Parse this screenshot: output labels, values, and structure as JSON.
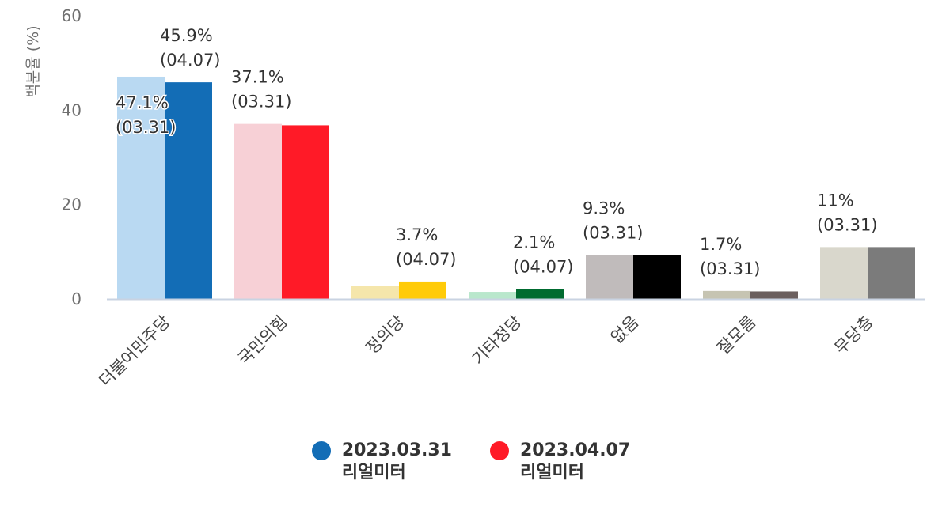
{
  "chart_data": {
    "type": "bar",
    "ylabel": "백분율 (%)",
    "ylim": [
      0,
      60
    ],
    "yticks": [
      "0",
      "20",
      "40",
      "60"
    ],
    "categories": [
      "더불어민주당",
      "국민의힘",
      "정의당",
      "기타정당",
      "없음",
      "잘모름",
      "무당층"
    ],
    "series": [
      {
        "name": "2023.03.31",
        "sub": "리얼미터",
        "color": "#1f77b4",
        "values": [
          47.1,
          37.1,
          2.8,
          1.5,
          9.3,
          1.7,
          11
        ],
        "bar_colors": [
          "#b9d9f2",
          "#f7d0d6",
          "#f5e6ab",
          "#b9e7cc",
          "#c0bbbb",
          "#c6c4b2",
          "#d9d7cc"
        ],
        "labels": [
          "47.1%\n(03.31)",
          "37.1%\n(03.31)",
          "",
          "",
          "9.3%\n(03.31)",
          "1.7%\n(03.31)",
          "11%\n(03.31)"
        ]
      },
      {
        "name": "2023.04.07",
        "sub": "리얼미터",
        "color": "#ff1a27",
        "values": [
          45.9,
          36.8,
          3.7,
          2.1,
          9.3,
          1.6,
          11
        ],
        "bar_colors": [
          "#136db6",
          "#ff1a27",
          "#ffcb08",
          "#006b30",
          "#000000",
          "#6b5f5e",
          "#7b7b7b"
        ],
        "labels": [
          "45.9%\n(04.07)",
          "",
          "3.7%\n(04.07)",
          "2.1%\n(04.07)",
          "",
          "",
          ""
        ]
      }
    ]
  },
  "legend": [
    {
      "date": "2023.03.31",
      "source": "리얼미터",
      "color": "#136db6"
    },
    {
      "date": "2023.04.07",
      "source": "리얼미터",
      "color": "#ff1a27"
    }
  ]
}
